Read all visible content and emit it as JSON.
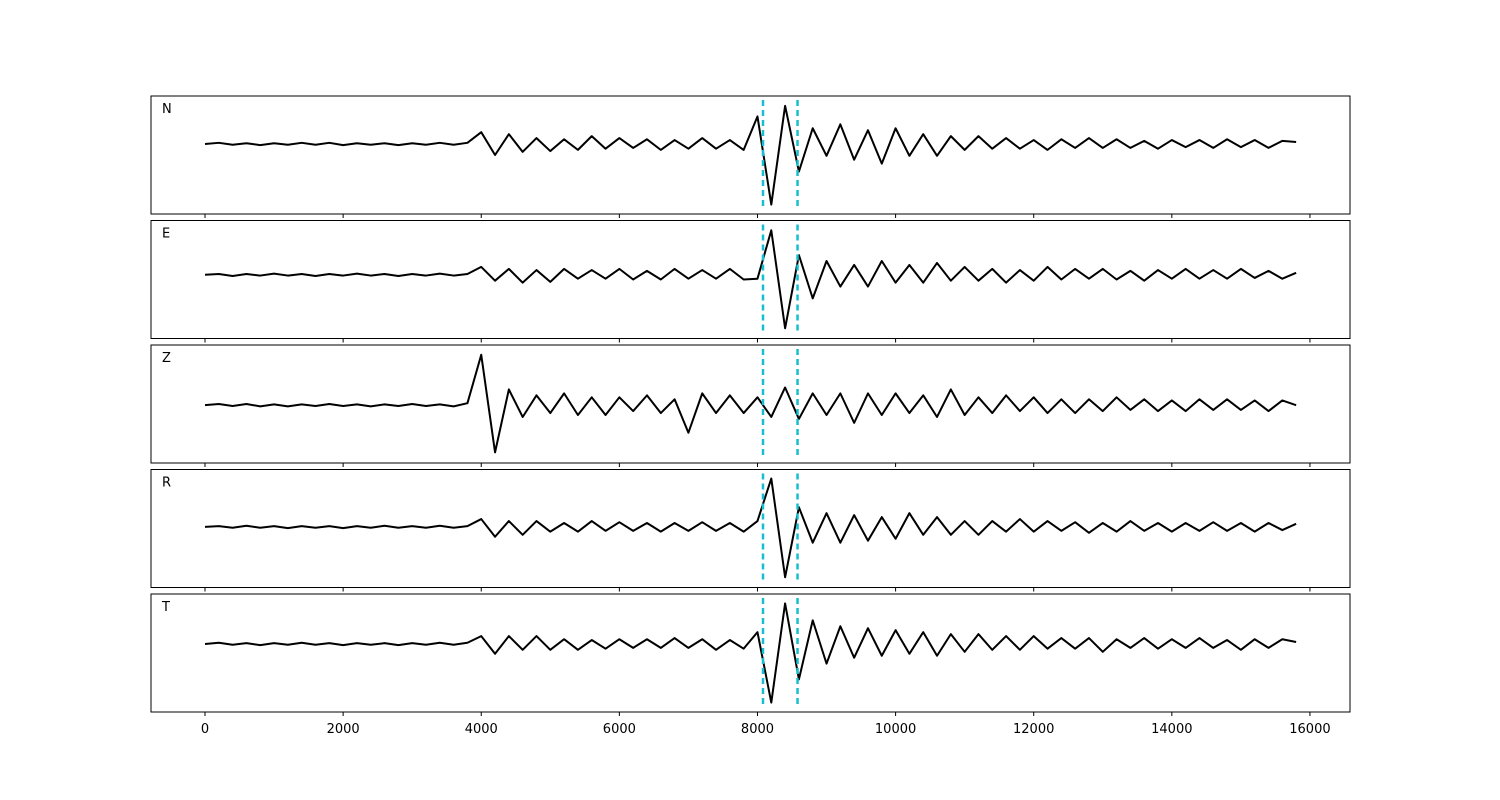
{
  "chart_data": {
    "type": "line",
    "subplots": true,
    "x": [
      0,
      200,
      400,
      600,
      800,
      1000,
      1200,
      1400,
      1600,
      1800,
      2000,
      2200,
      2400,
      2600,
      2800,
      3000,
      3200,
      3400,
      3600,
      3800,
      4000,
      4200,
      4400,
      4600,
      4800,
      5000,
      5200,
      5400,
      5600,
      5800,
      6000,
      6200,
      6400,
      6600,
      6800,
      7000,
      7200,
      7400,
      7600,
      7800,
      8000,
      8200,
      8400,
      8600,
      8800,
      9000,
      9200,
      9400,
      9600,
      9800,
      10000,
      10200,
      10400,
      10600,
      10800,
      11000,
      11200,
      11400,
      11600,
      11800,
      12000,
      12200,
      12400,
      12600,
      12800,
      13000,
      13200,
      13400,
      13600,
      13800,
      14000,
      14200,
      14400,
      14600,
      14800,
      15000,
      15200,
      15400,
      15600,
      15800
    ],
    "xlim": [
      -782,
      16580
    ],
    "xticks": [
      0,
      2000,
      4000,
      6000,
      8000,
      10000,
      12000,
      14000,
      16000
    ],
    "vlines": [
      8080,
      8580
    ],
    "vline_color": "#17becf",
    "series": [
      {
        "name": "N",
        "color": "#000000",
        "ylim": [
          -1.78,
          1.22
        ],
        "values": [
          0,
          0.03,
          -0.02,
          0.02,
          -0.03,
          0.02,
          -0.02,
          0.03,
          -0.02,
          0.03,
          -0.03,
          0.02,
          -0.02,
          0.02,
          -0.03,
          0.02,
          -0.02,
          0.03,
          -0.02,
          0.03,
          0.3,
          -0.28,
          0.25,
          -0.2,
          0.15,
          -0.18,
          0.12,
          -0.15,
          0.2,
          -0.12,
          0.15,
          -0.1,
          0.12,
          -0.15,
          0.1,
          -0.12,
          0.15,
          -0.12,
          0.1,
          -0.15,
          0.7,
          -1.54,
          0.97,
          -0.7,
          0.4,
          -0.3,
          0.5,
          -0.4,
          0.35,
          -0.5,
          0.4,
          -0.3,
          0.25,
          -0.3,
          0.2,
          -0.15,
          0.2,
          -0.12,
          0.15,
          -0.12,
          0.1,
          -0.15,
          0.12,
          -0.1,
          0.15,
          -0.1,
          0.12,
          -0.1,
          0.08,
          -0.12,
          0.1,
          -0.08,
          0.1,
          -0.1,
          0.12,
          -0.08,
          0.1,
          -0.1,
          0.08,
          0.05
        ]
      },
      {
        "name": "E",
        "color": "#000000",
        "ylim": [
          -1.62,
          1.38
        ],
        "values": [
          0,
          0.02,
          -0.03,
          0.02,
          -0.02,
          0.03,
          -0.02,
          0.02,
          -0.03,
          0.02,
          -0.02,
          0.03,
          -0.02,
          0.02,
          -0.03,
          0.02,
          -0.02,
          0.03,
          -0.02,
          0.02,
          0.2,
          -0.15,
          0.15,
          -0.2,
          0.12,
          -0.18,
          0.15,
          -0.1,
          0.12,
          -0.1,
          0.15,
          -0.12,
          0.1,
          -0.12,
          0.15,
          -0.1,
          0.12,
          -0.1,
          0.15,
          -0.12,
          -0.1,
          1.13,
          -1.36,
          0.5,
          -0.6,
          0.35,
          -0.3,
          0.25,
          -0.3,
          0.35,
          -0.2,
          0.25,
          -0.2,
          0.3,
          -0.15,
          0.2,
          -0.15,
          0.15,
          -0.2,
          0.12,
          -0.15,
          0.2,
          -0.12,
          0.15,
          -0.1,
          0.15,
          -0.12,
          0.1,
          -0.15,
          0.12,
          -0.1,
          0.15,
          -0.1,
          0.12,
          -0.1,
          0.15,
          -0.08,
          0.1,
          -0.1,
          0.05
        ]
      },
      {
        "name": "Z",
        "color": "#000000",
        "ylim": [
          -1.47,
          1.53
        ],
        "values": [
          0,
          0.03,
          -0.02,
          0.03,
          -0.03,
          0.02,
          -0.03,
          0.02,
          -0.02,
          0.03,
          -0.02,
          0.02,
          -0.03,
          0.02,
          -0.02,
          0.03,
          -0.02,
          0.02,
          -0.03,
          0.05,
          1.28,
          -1.2,
          0.4,
          -0.3,
          0.25,
          -0.2,
          0.3,
          -0.25,
          0.2,
          -0.25,
          0.2,
          -0.15,
          0.25,
          -0.2,
          0.15,
          -0.7,
          0.3,
          -0.2,
          0.25,
          -0.2,
          0.2,
          -0.3,
          0.45,
          -0.35,
          0.3,
          -0.25,
          0.3,
          -0.45,
          0.3,
          -0.25,
          0.3,
          -0.2,
          0.25,
          -0.3,
          0.4,
          -0.25,
          0.2,
          -0.2,
          0.25,
          -0.15,
          0.2,
          -0.2,
          0.15,
          -0.2,
          0.15,
          -0.15,
          0.2,
          -0.12,
          0.15,
          -0.15,
          0.12,
          -0.15,
          0.15,
          -0.12,
          0.15,
          -0.12,
          0.12,
          -0.15,
          0.12,
          0
        ]
      },
      {
        "name": "R",
        "color": "#000000",
        "ylim": [
          -1.54,
          1.46
        ],
        "values": [
          0,
          0.02,
          -0.02,
          0.03,
          -0.02,
          0.02,
          -0.03,
          0.02,
          -0.02,
          0.02,
          -0.03,
          0.02,
          -0.02,
          0.03,
          -0.02,
          0.02,
          -0.02,
          0.03,
          -0.02,
          0.02,
          0.2,
          -0.25,
          0.15,
          -0.2,
          0.15,
          -0.12,
          0.1,
          -0.12,
          0.15,
          -0.1,
          0.12,
          -0.1,
          0.1,
          -0.12,
          0.1,
          -0.1,
          0.12,
          -0.1,
          0.1,
          -0.12,
          0.15,
          1.23,
          -1.28,
          0.5,
          -0.4,
          0.35,
          -0.4,
          0.3,
          -0.35,
          0.25,
          -0.3,
          0.35,
          -0.2,
          0.25,
          -0.2,
          0.15,
          -0.2,
          0.15,
          -0.12,
          0.2,
          -0.12,
          0.15,
          -0.1,
          0.12,
          -0.15,
          0.1,
          -0.12,
          0.15,
          -0.1,
          0.1,
          -0.12,
          0.1,
          -0.1,
          0.12,
          -0.1,
          0.1,
          -0.12,
          0.1,
          -0.08,
          0.08
        ]
      },
      {
        "name": "T",
        "color": "#000000",
        "ylim": [
          -1.73,
          1.27
        ],
        "values": [
          0,
          0.03,
          -0.02,
          0.02,
          -0.03,
          0.02,
          -0.02,
          0.03,
          -0.02,
          0.02,
          -0.03,
          0.02,
          -0.02,
          0.02,
          -0.03,
          0.02,
          -0.02,
          0.03,
          -0.02,
          0.03,
          0.2,
          -0.25,
          0.2,
          -0.15,
          0.2,
          -0.15,
          0.12,
          -0.15,
          0.1,
          -0.12,
          0.12,
          -0.1,
          0.12,
          -0.1,
          0.15,
          -0.1,
          0.12,
          -0.15,
          0.1,
          -0.12,
          0.3,
          -1.49,
          1.03,
          -0.9,
          0.6,
          -0.5,
          0.45,
          -0.35,
          0.4,
          -0.3,
          0.35,
          -0.25,
          0.3,
          -0.3,
          0.25,
          -0.2,
          0.25,
          -0.15,
          0.2,
          -0.15,
          0.2,
          -0.12,
          0.15,
          -0.12,
          0.15,
          -0.2,
          0.12,
          -0.1,
          0.15,
          -0.12,
          0.12,
          -0.1,
          0.15,
          -0.1,
          0.1,
          -0.15,
          0.12,
          -0.1,
          0.12,
          0.05
        ]
      }
    ]
  }
}
